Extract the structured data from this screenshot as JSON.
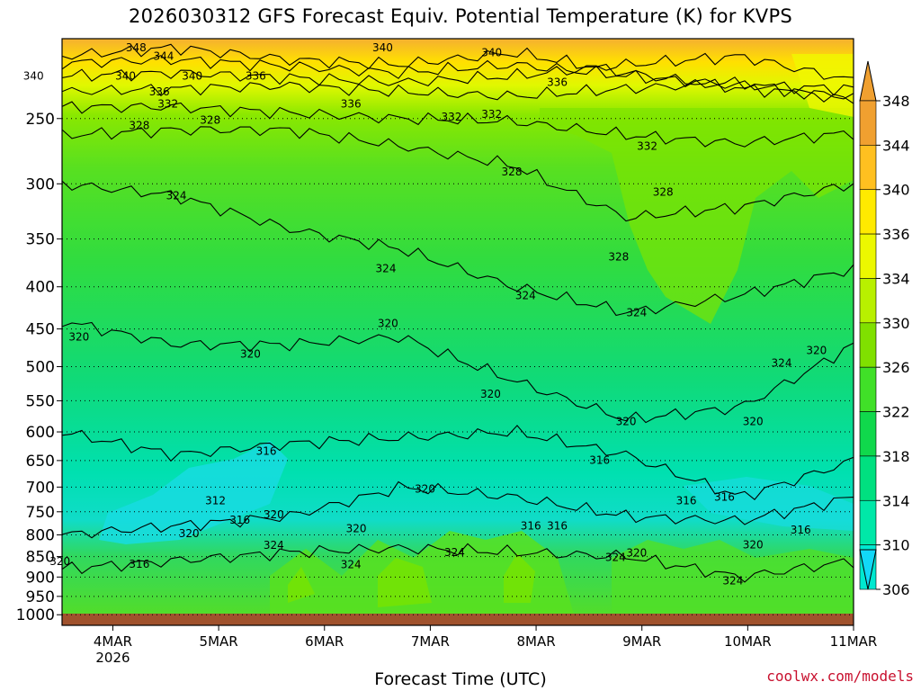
{
  "title": "2026030312 GFS Forecast Equiv. Potential Temperature (K) for KVPS",
  "credit": "coolwx.com/models",
  "chart_data": {
    "type": "heatmap",
    "title": "2026030312 GFS Forecast Equiv. Potential Temperature (K) for KVPS",
    "xlabel": "Forecast Time (UTC)",
    "ylabel": "",
    "x_ticks": [
      "4MAR",
      "5MAR",
      "6MAR",
      "7MAR",
      "8MAR",
      "9MAR",
      "10MAR",
      "11MAR"
    ],
    "x_sub": "2026",
    "y_ticks": [
      250,
      300,
      350,
      400,
      450,
      500,
      550,
      600,
      650,
      700,
      750,
      800,
      850,
      900,
      950,
      1000
    ],
    "y_scale": "log-pressure",
    "ylim": [
      1030,
      200
    ],
    "grid": "dotted-horizontal",
    "colorbar_ticks": [
      306,
      310,
      314,
      318,
      322,
      326,
      330,
      334,
      336,
      340,
      344,
      348
    ],
    "colorbar_colors": [
      "#12d8f8",
      "#00e8d0",
      "#00e8a8",
      "#00e080",
      "#10d84c",
      "#40e028",
      "#80e000",
      "#b8f000",
      "#ecf800",
      "#ffea00",
      "#ffc020",
      "#f0a030"
    ],
    "contour_labels": [
      {
        "value": 348,
        "x": 4.22,
        "p": 205
      },
      {
        "value": 344,
        "x": 4.48,
        "p": 210
      },
      {
        "value": 340,
        "x": 3.25,
        "p": 222
      },
      {
        "value": 340,
        "x": 4.12,
        "p": 222
      },
      {
        "value": 340,
        "x": 4.75,
        "p": 222
      },
      {
        "value": 340,
        "x": 6.55,
        "p": 205
      },
      {
        "value": 340,
        "x": 7.58,
        "p": 208
      },
      {
        "value": 336,
        "x": 4.44,
        "p": 232
      },
      {
        "value": 336,
        "x": 5.35,
        "p": 222
      },
      {
        "value": 336,
        "x": 8.2,
        "p": 226
      },
      {
        "value": 336,
        "x": 6.25,
        "p": 240
      },
      {
        "value": 332,
        "x": 4.52,
        "p": 240
      },
      {
        "value": 332,
        "x": 7.2,
        "p": 249
      },
      {
        "value": 332,
        "x": 7.58,
        "p": 247
      },
      {
        "value": 332,
        "x": 9.05,
        "p": 270
      },
      {
        "value": 328,
        "x": 4.25,
        "p": 255
      },
      {
        "value": 328,
        "x": 4.92,
        "p": 251
      },
      {
        "value": 328,
        "x": 7.77,
        "p": 290
      },
      {
        "value": 328,
        "x": 9.2,
        "p": 307
      },
      {
        "value": 328,
        "x": 8.78,
        "p": 368
      },
      {
        "value": 324,
        "x": 4.6,
        "p": 310
      },
      {
        "value": 324,
        "x": 6.58,
        "p": 380
      },
      {
        "value": 324,
        "x": 7.9,
        "p": 410
      },
      {
        "value": 324,
        "x": 8.95,
        "p": 430
      },
      {
        "value": 324,
        "x": 10.32,
        "p": 495
      },
      {
        "value": 324,
        "x": 5.52,
        "p": 824
      },
      {
        "value": 324,
        "x": 6.25,
        "p": 869
      },
      {
        "value": 324,
        "x": 7.23,
        "p": 840
      },
      {
        "value": 324,
        "x": 8.75,
        "p": 852
      },
      {
        "value": 324,
        "x": 9.86,
        "p": 910
      },
      {
        "value": 320,
        "x": 3.68,
        "p": 460
      },
      {
        "value": 320,
        "x": 5.3,
        "p": 483
      },
      {
        "value": 320,
        "x": 6.6,
        "p": 443
      },
      {
        "value": 320,
        "x": 7.57,
        "p": 540
      },
      {
        "value": 320,
        "x": 8.85,
        "p": 583
      },
      {
        "value": 320,
        "x": 10.05,
        "p": 583
      },
      {
        "value": 320,
        "x": 10.65,
        "p": 478
      },
      {
        "value": 320,
        "x": 3.5,
        "p": 862
      },
      {
        "value": 320,
        "x": 6.95,
        "p": 704
      },
      {
        "value": 320,
        "x": 5.52,
        "p": 756
      },
      {
        "value": 320,
        "x": 4.72,
        "p": 797
      },
      {
        "value": 320,
        "x": 6.3,
        "p": 786
      },
      {
        "value": 320,
        "x": 8.95,
        "p": 841
      },
      {
        "value": 320,
        "x": 10.05,
        "p": 822
      },
      {
        "value": 316,
        "x": 5.45,
        "p": 633
      },
      {
        "value": 316,
        "x": 8.6,
        "p": 649
      },
      {
        "value": 316,
        "x": 9.78,
        "p": 720
      },
      {
        "value": 316,
        "x": 9.42,
        "p": 727
      },
      {
        "value": 316,
        "x": 4.25,
        "p": 868
      },
      {
        "value": 316,
        "x": 5.2,
        "p": 768
      },
      {
        "value": 316,
        "x": 7.95,
        "p": 780
      },
      {
        "value": 316,
        "x": 8.2,
        "p": 780
      },
      {
        "value": 316,
        "x": 10.5,
        "p": 789
      },
      {
        "value": 312,
        "x": 4.97,
        "p": 727
      }
    ]
  }
}
